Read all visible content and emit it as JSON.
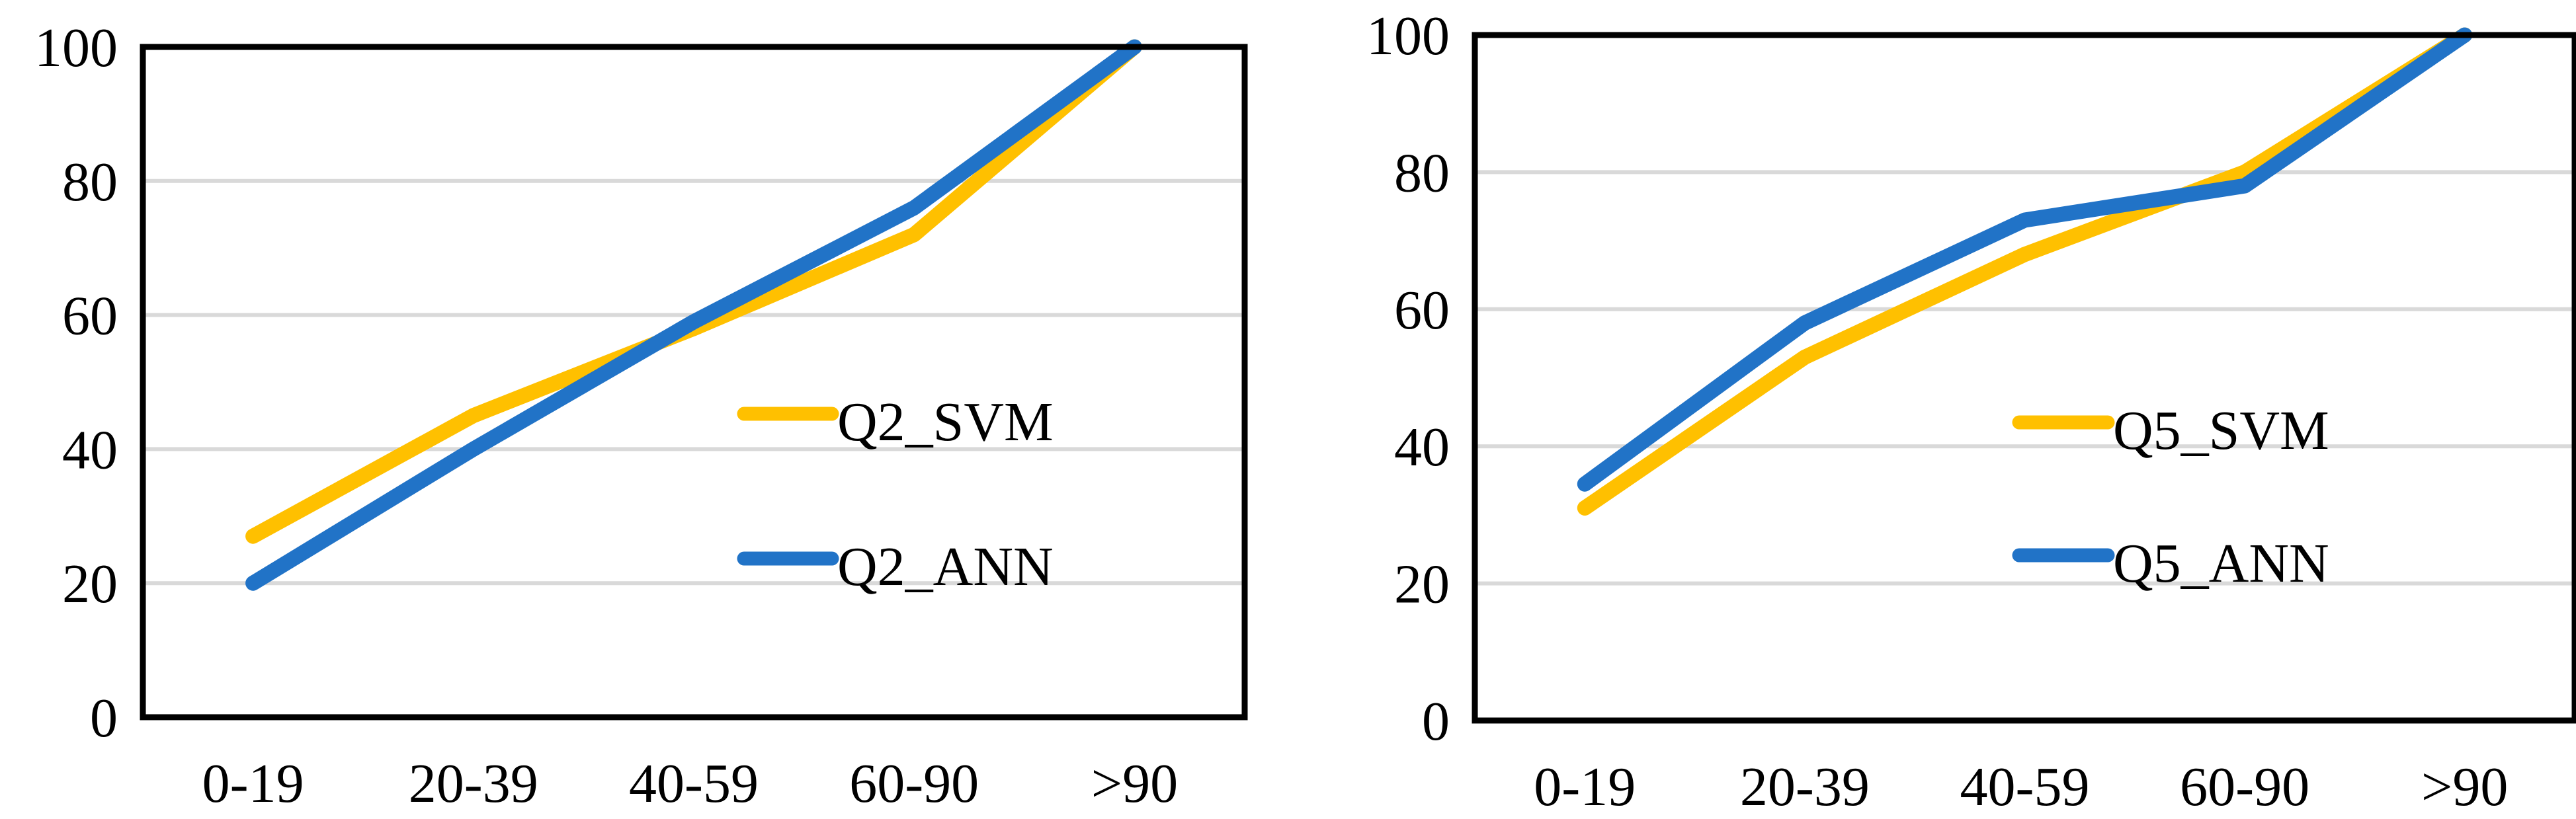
{
  "page": {
    "background": "#FFFFFF",
    "grid_color": "#D9D9D9",
    "axis_color": "#000000"
  },
  "chart_data": [
    {
      "id": "q2-chart",
      "type": "line",
      "title": "",
      "xlabel": "",
      "ylabel": "",
      "categories": [
        "0-19",
        "20-39",
        "40-59",
        "60-90",
        ">90"
      ],
      "y_ticks": [
        "0",
        "20",
        "40",
        "60",
        "80",
        "100"
      ],
      "ylim": [
        0,
        100
      ],
      "grid": true,
      "legend_position": "inside-center-right",
      "series": [
        {
          "name": "Q2_SVM",
          "color": "#FFC000",
          "values": [
            27,
            45,
            58,
            72,
            100
          ]
        },
        {
          "name": "Q2_ANN",
          "color": "#2173C7",
          "values": [
            20,
            40,
            59,
            76,
            100
          ]
        }
      ]
    },
    {
      "id": "q5-chart",
      "type": "line",
      "title": "",
      "xlabel": "",
      "ylabel": "",
      "categories": [
        "0-19",
        "20-39",
        "40-59",
        "60-90",
        ">90"
      ],
      "y_ticks": [
        "0",
        "20",
        "40",
        "60",
        "80",
        "100"
      ],
      "ylim": [
        0,
        100
      ],
      "grid": true,
      "legend_position": "inside-center-right",
      "series": [
        {
          "name": "Q5_SVM",
          "color": "#FFC000",
          "values": [
            31,
            53,
            68,
            80,
            100
          ]
        },
        {
          "name": "Q5_ANN",
          "color": "#2173C7",
          "values": [
            34.5,
            58,
            73,
            78,
            100
          ]
        }
      ]
    }
  ]
}
